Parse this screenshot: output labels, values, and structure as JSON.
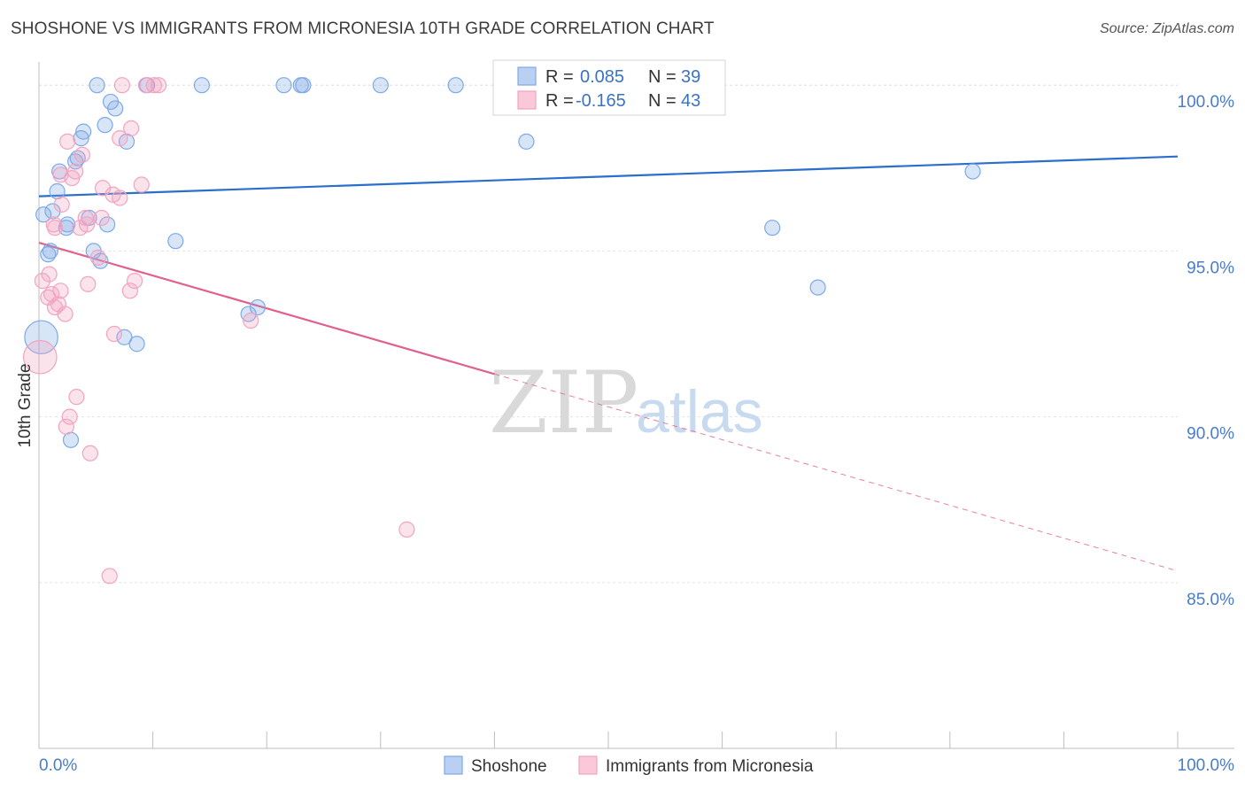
{
  "header": {
    "title": "SHOSHONE VS IMMIGRANTS FROM MICRONESIA 10TH GRADE CORRELATION CHART",
    "source": "Source: ZipAtlas.com"
  },
  "watermark": {
    "zip": "ZIP",
    "atlas": "atlas"
  },
  "chart_data": {
    "type": "scatter",
    "title": "SHOSHONE VS IMMIGRANTS FROM MICRONESIA 10TH GRADE CORRELATION CHART",
    "xlabel": "",
    "ylabel": "10th Grade",
    "xlim": [
      0,
      100
    ],
    "ylim": [
      80.0,
      100.7
    ],
    "x_tick_labels": [
      "0.0%",
      "100.0%"
    ],
    "y_ticks": [
      100.0,
      95.0,
      90.0,
      85.0
    ],
    "y_tick_labels": [
      "100.0%",
      "95.0%",
      "90.0%",
      "85.0%"
    ],
    "grid": true,
    "legend_position": "top-center",
    "series": [
      {
        "name": "Shoshone",
        "color": "#7ea9e6",
        "line_color": "#2a6fcc",
        "r": "0.085",
        "n": "39",
        "trend": {
          "x": [
            0,
            100
          ],
          "y": [
            96.65,
            97.85
          ],
          "dashed_from": null
        },
        "points": [
          [
            5.1,
            100.0
          ],
          [
            9.5,
            100.0
          ],
          [
            14.3,
            100.0
          ],
          [
            21.5,
            100.0
          ],
          [
            23.0,
            100.0
          ],
          [
            23.2,
            100.0
          ],
          [
            30.0,
            100.0
          ],
          [
            36.6,
            100.0
          ],
          [
            6.3,
            99.5
          ],
          [
            6.7,
            99.3
          ],
          [
            5.8,
            98.8
          ],
          [
            3.9,
            98.6
          ],
          [
            7.7,
            98.3
          ],
          [
            3.7,
            98.4
          ],
          [
            42.8,
            98.3
          ],
          [
            3.4,
            97.8
          ],
          [
            3.2,
            97.7
          ],
          [
            1.8,
            97.4
          ],
          [
            82.0,
            97.4
          ],
          [
            1.6,
            96.8
          ],
          [
            1.2,
            96.2
          ],
          [
            0.4,
            96.1
          ],
          [
            4.4,
            96.0
          ],
          [
            6.0,
            95.8
          ],
          [
            2.4,
            95.7
          ],
          [
            2.5,
            95.8
          ],
          [
            64.4,
            95.7
          ],
          [
            12.0,
            95.3
          ],
          [
            1.0,
            95.0
          ],
          [
            0.8,
            94.9
          ],
          [
            4.8,
            95.0
          ],
          [
            5.4,
            94.7
          ],
          [
            68.4,
            93.9
          ],
          [
            19.2,
            93.3
          ],
          [
            18.4,
            93.1
          ],
          [
            7.5,
            92.4
          ],
          [
            8.6,
            92.2
          ],
          [
            0.2,
            92.4
          ],
          [
            2.8,
            89.3
          ]
        ],
        "sizes": [
          1,
          1,
          1,
          1,
          1,
          1,
          1,
          1,
          1,
          1,
          1,
          1,
          1,
          1,
          1,
          1,
          1,
          1,
          1,
          1,
          1,
          1,
          1,
          1,
          1,
          1,
          1,
          1,
          1,
          1,
          1,
          1,
          1,
          1,
          1,
          1,
          1,
          2.2,
          1
        ]
      },
      {
        "name": "Immigrants from Micronesia",
        "color": "#f2a3bf",
        "line_color": "#e0608e",
        "r": "-0.165",
        "n": "43",
        "trend": {
          "x": [
            0,
            100
          ],
          "y": [
            95.25,
            85.35
          ],
          "dashed_from": 40.0
        },
        "points": [
          [
            7.3,
            100.0
          ],
          [
            9.4,
            100.0
          ],
          [
            10.1,
            100.0
          ],
          [
            10.5,
            100.0
          ],
          [
            8.1,
            98.7
          ],
          [
            7.1,
            98.4
          ],
          [
            2.5,
            98.3
          ],
          [
            3.8,
            97.9
          ],
          [
            3.2,
            97.4
          ],
          [
            2.9,
            97.2
          ],
          [
            1.9,
            97.3
          ],
          [
            9.0,
            97.0
          ],
          [
            5.6,
            96.9
          ],
          [
            6.5,
            96.7
          ],
          [
            7.1,
            96.6
          ],
          [
            2.0,
            96.4
          ],
          [
            5.5,
            96.0
          ],
          [
            4.1,
            96.0
          ],
          [
            4.2,
            95.8
          ],
          [
            1.3,
            95.8
          ],
          [
            1.4,
            95.7
          ],
          [
            3.6,
            95.7
          ],
          [
            4.3,
            94.0
          ],
          [
            0.9,
            94.3
          ],
          [
            0.3,
            94.1
          ],
          [
            8.4,
            94.1
          ],
          [
            5.2,
            94.8
          ],
          [
            1.9,
            93.8
          ],
          [
            8.0,
            93.8
          ],
          [
            1.1,
            93.7
          ],
          [
            0.8,
            93.6
          ],
          [
            1.7,
            93.4
          ],
          [
            2.3,
            93.1
          ],
          [
            18.6,
            92.9
          ],
          [
            1.4,
            93.3
          ],
          [
            6.6,
            92.5
          ],
          [
            0.1,
            91.8
          ],
          [
            3.3,
            90.6
          ],
          [
            2.7,
            90.0
          ],
          [
            2.4,
            89.7
          ],
          [
            4.5,
            88.9
          ],
          [
            32.3,
            86.6
          ],
          [
            6.2,
            85.2
          ]
        ],
        "sizes": [
          1,
          1,
          1,
          1,
          1,
          1,
          1,
          1,
          1,
          1,
          1,
          1,
          1,
          1,
          1,
          1,
          1,
          1,
          1,
          1,
          1,
          1,
          1,
          1,
          1,
          1,
          1,
          1,
          1,
          1,
          1,
          1,
          1,
          1,
          1,
          1,
          2.2,
          1,
          1,
          1,
          1,
          1,
          1
        ]
      }
    ]
  }
}
